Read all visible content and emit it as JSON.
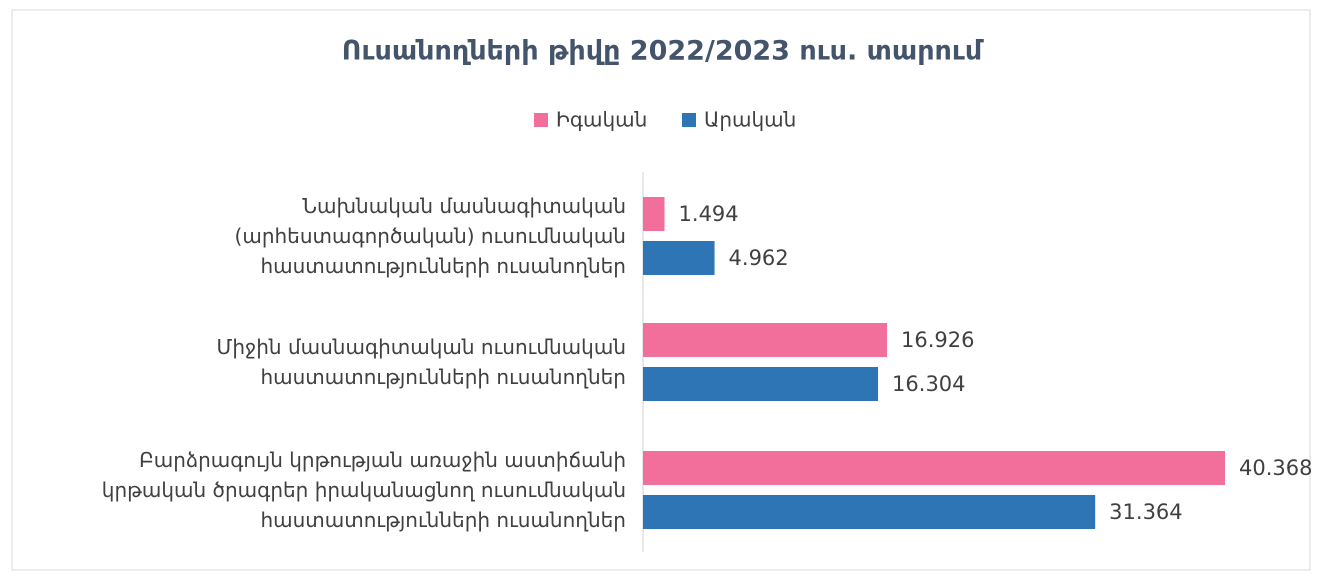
{
  "chart_data": {
    "type": "bar",
    "orientation": "horizontal",
    "title": "Ուսանողների թիվը 2022/2023 ուս. տարում",
    "categories": [
      "Նախնական մասնագիտական\n(արհեստագործական) ուսումնական\nհաստատությունների ուսանողներ",
      "Միջին մասնագիտական ուսումնական\nհաստատությունների ուսանողներ",
      "Բարձրագույն կրթության առաջին աստիճանի\nկրթական ծրագրեր իրականացնող ուսումնական\nհաստատությունների ուսանողներ"
    ],
    "series": [
      {
        "name": "Իգական",
        "color": "#f36f9b",
        "values": [
          1494,
          16926,
          40368
        ],
        "value_labels": [
          "1.494",
          "16.926",
          "40.368"
        ]
      },
      {
        "name": "Արական",
        "color": "#2e75b6",
        "values": [
          4962,
          16304,
          31364
        ],
        "value_labels": [
          "4.962",
          "16.304",
          "31.364"
        ]
      }
    ],
    "legend": "top"
  }
}
